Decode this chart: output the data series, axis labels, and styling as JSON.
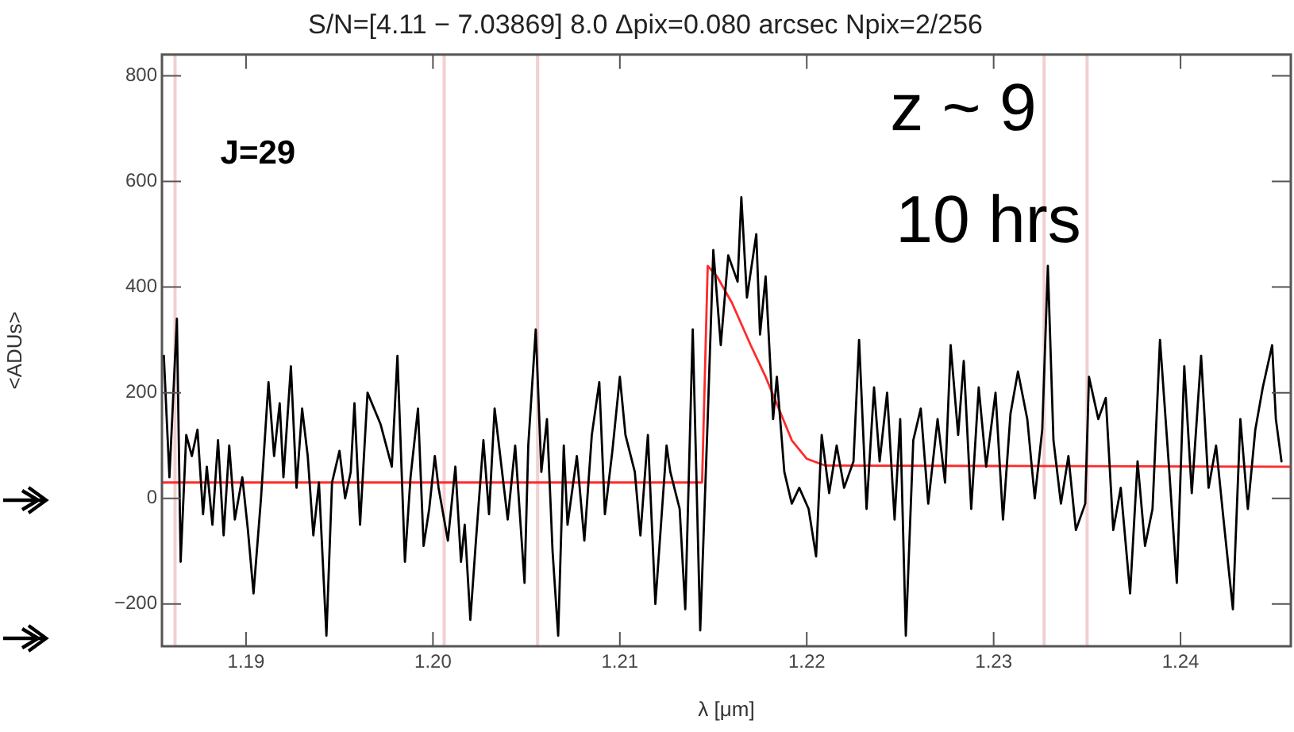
{
  "chart_data": {
    "type": "line",
    "title": "S/N=[4.11 − 7.03869] 8.0 Δpix=0.080 arcsec Npix=2/256",
    "xlabel": "λ [μm]",
    "ylabel": "<ADUs>",
    "xlim": [
      1.1855,
      1.2459
    ],
    "ylim": [
      -280,
      840
    ],
    "xticks": [
      {
        "value": 1.19,
        "label": "1.19"
      },
      {
        "value": 1.2,
        "label": "1.20"
      },
      {
        "value": 1.21,
        "label": "1.21"
      },
      {
        "value": 1.22,
        "label": "1.22"
      },
      {
        "value": 1.23,
        "label": "1.23"
      },
      {
        "value": 1.24,
        "label": "1.24"
      }
    ],
    "yticks": [
      {
        "value": -200,
        "label": "−200"
      },
      0,
      200,
      400,
      600,
      800
    ],
    "grid": false,
    "legend": false,
    "marker": "none",
    "line_style": "solid",
    "annotations": [
      "J=29",
      "z ~ 9",
      "10 hrs"
    ],
    "ref_lines": [
      {
        "axis": "x",
        "value": 1.1862,
        "color": "#f2cfcf"
      },
      {
        "axis": "x",
        "value": 1.2006,
        "color": "#f2cfcf"
      },
      {
        "axis": "x",
        "value": 1.2056,
        "color": "#f2cfcf"
      },
      {
        "axis": "x",
        "value": 1.2327,
        "color": "#f2cfcf"
      },
      {
        "axis": "x",
        "value": 1.235,
        "color": "#f2cfcf"
      }
    ],
    "series": [
      {
        "color": "#000000",
        "x": [
          1.1856,
          1.1859,
          1.1863,
          1.1865,
          1.1868,
          1.1871,
          1.1874,
          1.1877,
          1.1879,
          1.1882,
          1.1885,
          1.1888,
          1.1891,
          1.1894,
          1.1898,
          1.1901,
          1.1904,
          1.1908,
          1.1912,
          1.1915,
          1.1918,
          1.192,
          1.1924,
          1.1927,
          1.193,
          1.1933,
          1.1936,
          1.1939,
          1.1943,
          1.1946,
          1.195,
          1.1953,
          1.1956,
          1.1958,
          1.1961,
          1.1965,
          1.1972,
          1.1978,
          1.1981,
          1.1985,
          1.1988,
          1.1992,
          1.1995,
          1.1998,
          1.2001,
          1.2003,
          1.2008,
          1.2012,
          1.2015,
          1.2017,
          1.202,
          1.2023,
          1.2027,
          1.203,
          1.2033,
          1.2036,
          1.204,
          1.2044,
          1.2049,
          1.2051,
          1.2055,
          1.2058,
          1.2061,
          1.2064,
          1.2067,
          1.207,
          1.2072,
          1.2077,
          1.2081,
          1.2085,
          1.2089,
          1.2092,
          1.2096,
          1.21,
          1.2103,
          1.2108,
          1.2111,
          1.2115,
          1.2119,
          1.2125,
          1.2127,
          1.2132,
          1.2135,
          1.2139,
          1.2143,
          1.2147,
          1.215,
          1.2154,
          1.2158,
          1.2163,
          1.2165,
          1.2168,
          1.2173,
          1.2175,
          1.2178,
          1.2182,
          1.2184,
          1.2188,
          1.2192,
          1.2196,
          1.2201,
          1.2205,
          1.2208,
          1.2212,
          1.2216,
          1.222,
          1.2225,
          1.2228,
          1.2232,
          1.2236,
          1.2239,
          1.2243,
          1.2247,
          1.225,
          1.2253,
          1.2257,
          1.2261,
          1.2265,
          1.227,
          1.2274,
          1.2277,
          1.2281,
          1.2284,
          1.2288,
          1.2292,
          1.2296,
          1.2301,
          1.2305,
          1.2309,
          1.2313,
          1.2318,
          1.2322,
          1.2326,
          1.2329,
          1.2332,
          1.2336,
          1.234,
          1.2344,
          1.2349,
          1.2351,
          1.2356,
          1.236,
          1.2364,
          1.2368,
          1.2373,
          1.2377,
          1.2381,
          1.2385,
          1.2389,
          1.2394,
          1.2398,
          1.2402,
          1.2406,
          1.2411,
          1.2415,
          1.2419,
          1.2423,
          1.2428,
          1.2432,
          1.2436,
          1.244,
          1.2444,
          1.2449,
          1.2451,
          1.2454
        ],
        "values": [
          270,
          40,
          340,
          -120,
          120,
          80,
          130,
          -30,
          60,
          -50,
          110,
          -70,
          100,
          -40,
          40,
          -60,
          -180,
          0,
          220,
          80,
          180,
          40,
          250,
          20,
          170,
          80,
          -70,
          30,
          -260,
          30,
          90,
          0,
          50,
          180,
          -50,
          200,
          140,
          60,
          270,
          -120,
          40,
          170,
          -90,
          -20,
          80,
          20,
          -80,
          60,
          -120,
          -50,
          -230,
          -80,
          110,
          -30,
          170,
          80,
          -40,
          100,
          -160,
          100,
          320,
          50,
          150,
          -100,
          -260,
          100,
          -50,
          80,
          -80,
          120,
          220,
          -30,
          90,
          230,
          120,
          50,
          -70,
          120,
          -200,
          100,
          50,
          -20,
          -210,
          320,
          -250,
          150,
          470,
          290,
          460,
          410,
          570,
          380,
          500,
          310,
          420,
          150,
          230,
          50,
          -10,
          20,
          -20,
          -110,
          120,
          10,
          100,
          20,
          70,
          300,
          -20,
          210,
          70,
          200,
          -40,
          150,
          -260,
          110,
          170,
          -10,
          150,
          30,
          290,
          120,
          260,
          -20,
          210,
          60,
          200,
          -40,
          160,
          240,
          150,
          0,
          130,
          440,
          110,
          -10,
          80,
          -60,
          -10,
          230,
          150,
          190,
          -60,
          20,
          -180,
          70,
          -90,
          -20,
          300,
          50,
          -160,
          250,
          10,
          270,
          20,
          100,
          -40,
          -210,
          150,
          -20,
          130,
          210,
          290,
          150,
          70
        ]
      },
      {
        "color": "#ff2a2a",
        "x": [
          1.1855,
          1.2144,
          1.2147,
          1.2152,
          1.216,
          1.217,
          1.2178,
          1.2185,
          1.2192,
          1.22,
          1.221,
          1.2459
        ],
        "values": [
          30,
          30,
          440,
          420,
          370,
          290,
          230,
          170,
          110,
          75,
          62,
          60
        ]
      }
    ]
  }
}
